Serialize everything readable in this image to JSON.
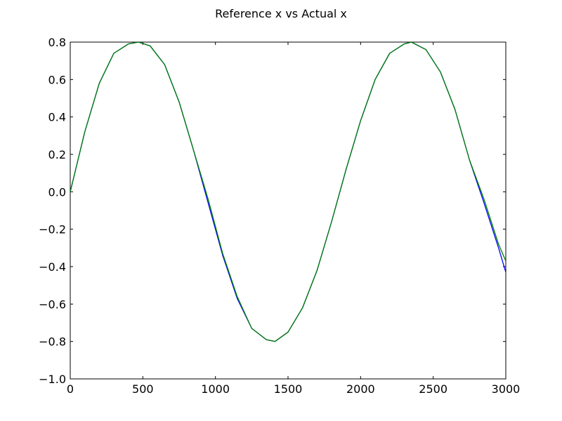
{
  "chart_data": {
    "type": "line",
    "title": "Reference x vs Actual x",
    "xlabel": "",
    "ylabel": "",
    "xlim": [
      0,
      3000
    ],
    "ylim": [
      -1.0,
      0.8
    ],
    "grid": false,
    "x_ticks": [
      "0",
      "500",
      "1000",
      "1500",
      "2000",
      "2500",
      "3000"
    ],
    "y_ticks": [
      "−1.0",
      "−0.8",
      "−0.6",
      "−0.4",
      "−0.2",
      "0.0",
      "0.2",
      "0.4",
      "0.6",
      "0.8"
    ],
    "x_tick_values": [
      0,
      500,
      1000,
      1500,
      2000,
      2500,
      3000
    ],
    "y_tick_values": [
      -1.0,
      -0.8,
      -0.6,
      -0.4,
      -0.2,
      0.0,
      0.2,
      0.4,
      0.6,
      0.8
    ],
    "series": [
      {
        "color": "#0000ff",
        "x": [
          0,
          100,
          200,
          300,
          400,
          470,
          550,
          650,
          750,
          850,
          950,
          1050,
          1150,
          1250,
          1350,
          1410,
          1500,
          1600,
          1700,
          1800,
          1900,
          2000,
          2100,
          2200,
          2300,
          2350,
          2450,
          2550,
          2650,
          2750,
          2850,
          2950,
          3000
        ],
        "y": [
          0.0,
          0.32,
          0.58,
          0.74,
          0.79,
          0.8,
          0.78,
          0.68,
          0.48,
          0.22,
          -0.06,
          -0.34,
          -0.57,
          -0.73,
          -0.79,
          -0.8,
          -0.75,
          -0.62,
          -0.42,
          -0.16,
          0.12,
          0.38,
          0.6,
          0.74,
          0.79,
          0.8,
          0.76,
          0.64,
          0.44,
          0.17,
          -0.06,
          -0.3,
          -0.43
        ]
      },
      {
        "color": "#008000",
        "x": [
          0,
          100,
          200,
          300,
          400,
          470,
          550,
          650,
          750,
          850,
          950,
          1050,
          1150,
          1250,
          1350,
          1410,
          1500,
          1600,
          1700,
          1800,
          1900,
          2000,
          2100,
          2200,
          2300,
          2350,
          2450,
          2550,
          2650,
          2750,
          2850,
          2950,
          3000
        ],
        "y": [
          0.0,
          0.32,
          0.58,
          0.74,
          0.79,
          0.8,
          0.78,
          0.68,
          0.48,
          0.22,
          -0.04,
          -0.33,
          -0.56,
          -0.73,
          -0.79,
          -0.8,
          -0.75,
          -0.62,
          -0.42,
          -0.16,
          0.12,
          0.38,
          0.6,
          0.74,
          0.79,
          0.8,
          0.76,
          0.64,
          0.44,
          0.17,
          -0.04,
          -0.28,
          -0.37
        ]
      }
    ]
  }
}
